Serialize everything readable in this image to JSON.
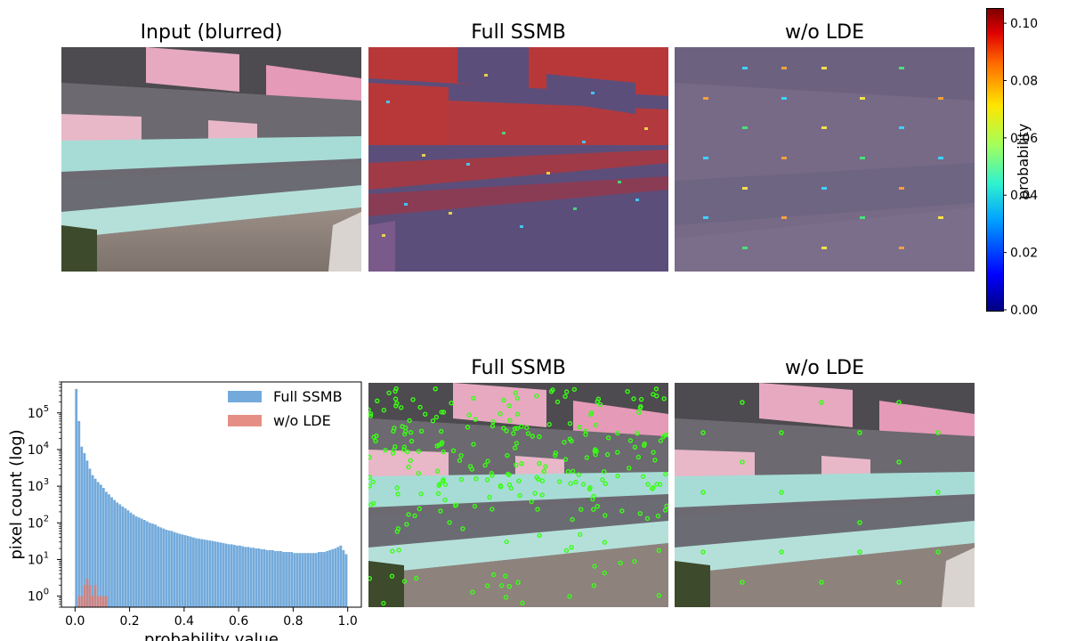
{
  "top_row": {
    "titles": [
      "Input (blurred)",
      "Full SSMB",
      "w/o LDE"
    ]
  },
  "bottom_row": {
    "titles": [
      "Full SSMB",
      "w/o LDE"
    ]
  },
  "colorbar": {
    "label": "probability",
    "ticks": [
      "0.00",
      "0.02",
      "0.04",
      "0.06",
      "0.08",
      "0.10"
    ],
    "range": [
      0,
      0.105
    ],
    "colormap": "jet"
  },
  "colors": {
    "full_ssmb": "#5b9bd5",
    "wo_lde": "#e07b6f",
    "keypoint": "#39ff14",
    "overlay_tint": "#5a4a7a"
  },
  "chart_data": {
    "type": "bar",
    "title": "",
    "xlabel": "probability value",
    "ylabel": "pixel count (log)",
    "xlim": [
      -0.05,
      1.05
    ],
    "ylim": [
      0.5,
      700000
    ],
    "yscale": "log",
    "xticks": [
      "0.0",
      "0.2",
      "0.4",
      "0.6",
      "0.8",
      "1.0"
    ],
    "yticks": [
      "10^0",
      "10^1",
      "10^2",
      "10^3",
      "10^4",
      "10^5"
    ],
    "legend_position": "top-right",
    "bin_width": 0.01,
    "series": [
      {
        "name": "Full SSMB",
        "x": [
          0.005,
          0.015,
          0.025,
          0.035,
          0.045,
          0.055,
          0.065,
          0.075,
          0.085,
          0.095,
          0.105,
          0.115,
          0.125,
          0.135,
          0.145,
          0.155,
          0.165,
          0.175,
          0.185,
          0.195,
          0.205,
          0.215,
          0.225,
          0.235,
          0.245,
          0.255,
          0.265,
          0.275,
          0.285,
          0.295,
          0.305,
          0.315,
          0.325,
          0.335,
          0.345,
          0.355,
          0.365,
          0.375,
          0.385,
          0.395,
          0.405,
          0.415,
          0.425,
          0.435,
          0.445,
          0.455,
          0.465,
          0.475,
          0.485,
          0.495,
          0.505,
          0.515,
          0.525,
          0.535,
          0.545,
          0.555,
          0.565,
          0.575,
          0.585,
          0.595,
          0.605,
          0.615,
          0.625,
          0.635,
          0.645,
          0.655,
          0.665,
          0.675,
          0.685,
          0.695,
          0.705,
          0.715,
          0.725,
          0.735,
          0.745,
          0.755,
          0.765,
          0.775,
          0.785,
          0.795,
          0.805,
          0.815,
          0.825,
          0.835,
          0.845,
          0.855,
          0.865,
          0.875,
          0.885,
          0.895,
          0.905,
          0.915,
          0.925,
          0.935,
          0.945,
          0.955,
          0.965,
          0.975,
          0.985,
          0.995
        ],
        "values": [
          450000,
          60000,
          12000,
          8000,
          5000,
          3000,
          2000,
          1600,
          1300,
          1100,
          900,
          700,
          600,
          500,
          420,
          360,
          320,
          280,
          250,
          220,
          190,
          170,
          150,
          140,
          130,
          120,
          110,
          100,
          95,
          90,
          80,
          75,
          70,
          65,
          62,
          60,
          56,
          53,
          50,
          48,
          46,
          44,
          42,
          40,
          38,
          37,
          36,
          35,
          34,
          33,
          32,
          31,
          30,
          29,
          28,
          27,
          26,
          26,
          25,
          24,
          24,
          23,
          22,
          22,
          21,
          21,
          20,
          20,
          19,
          19,
          18,
          18,
          18,
          17,
          17,
          17,
          16,
          16,
          16,
          16,
          15,
          15,
          15,
          15,
          15,
          15,
          15,
          15,
          15,
          16,
          16,
          16,
          17,
          18,
          19,
          20,
          22,
          24,
          18,
          14
        ]
      },
      {
        "name": "w/o LDE",
        "x": [
          0.015,
          0.025,
          0.035,
          0.045,
          0.055,
          0.065,
          0.075,
          0.085,
          0.095,
          0.105,
          0.115
        ],
        "values": [
          1,
          1,
          2,
          3,
          2,
          1,
          2,
          1,
          1,
          1,
          1
        ]
      }
    ]
  }
}
